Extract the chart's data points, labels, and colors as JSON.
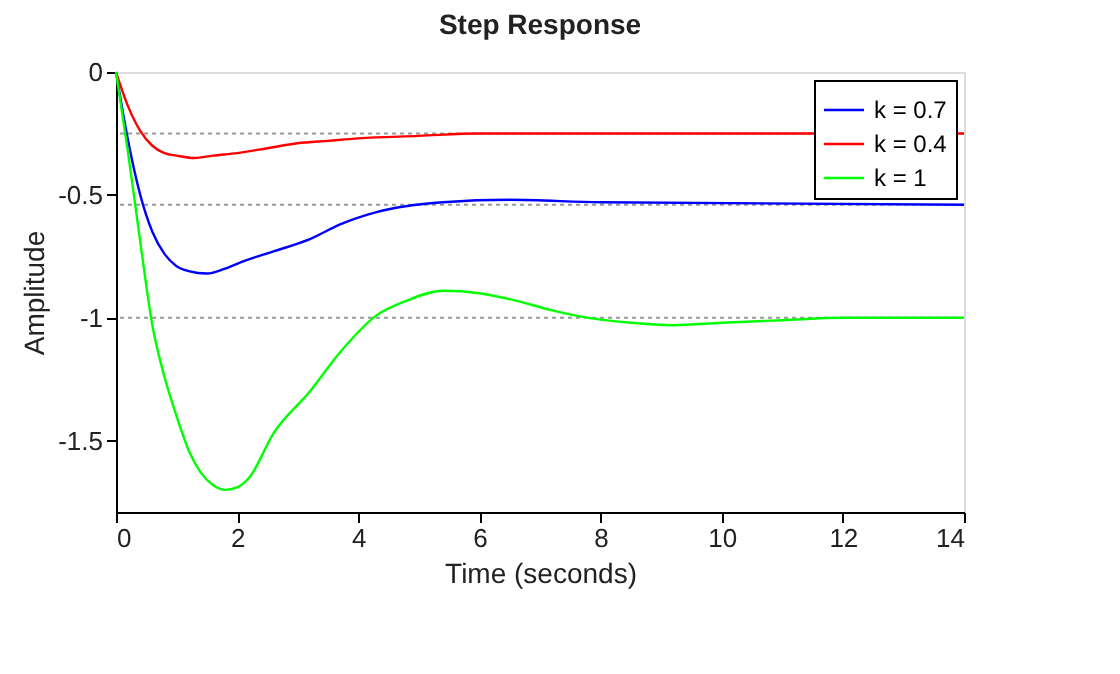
{
  "chart_data": {
    "type": "line",
    "title": "Step Response",
    "xlabel": "Time (seconds)",
    "ylabel": "Amplitude",
    "xlim": [
      0,
      14
    ],
    "xticks": [
      0,
      2,
      4,
      6,
      8,
      10,
      12,
      14
    ],
    "ylim": [
      -1.79,
      0
    ],
    "yticks": [
      -1.5,
      -1,
      -0.5,
      0
    ],
    "grid": false,
    "legend": "top right",
    "marker": "none",
    "line_style": "solid",
    "ref_lines": [
      {
        "axis": "y",
        "value": -0.25,
        "color": "#999999",
        "line_style": "dotted"
      },
      {
        "axis": "y",
        "value": -0.54,
        "color": "#999999",
        "line_style": "dotted"
      },
      {
        "axis": "y",
        "value": -1,
        "color": "#999999",
        "line_style": "dotted"
      }
    ],
    "series": [
      {
        "name": "k = 0.7",
        "color": "#0000ff",
        "x": [
          0,
          0.2,
          0.4,
          0.6,
          0.8,
          1.0,
          1.2,
          1.5,
          1.8,
          2.1,
          2.6,
          3.2,
          3.7,
          4.3,
          5.4,
          6.5,
          8,
          14
        ],
        "values": [
          0,
          -0.28,
          -0.5,
          -0.65,
          -0.74,
          -0.79,
          -0.81,
          -0.82,
          -0.8,
          -0.77,
          -0.73,
          -0.68,
          -0.62,
          -0.57,
          -0.53,
          -0.52,
          -0.53,
          -0.54
        ]
      },
      {
        "name": "k = 0.4",
        "color": "#ff0000",
        "x": [
          0,
          0.2,
          0.4,
          0.6,
          0.8,
          1.0,
          1.3,
          1.6,
          2.0,
          2.5,
          3,
          3.5,
          4,
          5,
          6,
          8,
          14
        ],
        "values": [
          0,
          -0.14,
          -0.24,
          -0.3,
          -0.33,
          -0.34,
          -0.35,
          -0.34,
          -0.33,
          -0.31,
          -0.29,
          -0.28,
          -0.27,
          -0.26,
          -0.25,
          -0.25,
          -0.25
        ]
      },
      {
        "name": "k = 1",
        "color": "#00ff00",
        "x": [
          0,
          0.2,
          0.4,
          0.6,
          0.8,
          1.0,
          1.2,
          1.4,
          1.6,
          1.8,
          2.0,
          2.2,
          2.6,
          3.2,
          3.7,
          4.3,
          4.8,
          5.4,
          6,
          6.6,
          7.2,
          7.8,
          8.5,
          9.2,
          10,
          11,
          12,
          14
        ],
        "values": [
          0,
          -0.33,
          -0.69,
          -1.03,
          -1.24,
          -1.4,
          -1.54,
          -1.63,
          -1.68,
          -1.7,
          -1.69,
          -1.65,
          -1.47,
          -1.3,
          -1.14,
          -0.99,
          -0.93,
          -0.89,
          -0.9,
          -0.93,
          -0.97,
          -1.0,
          -1.02,
          -1.03,
          -1.02,
          -1.01,
          -1.0,
          -1.0
        ]
      }
    ]
  }
}
